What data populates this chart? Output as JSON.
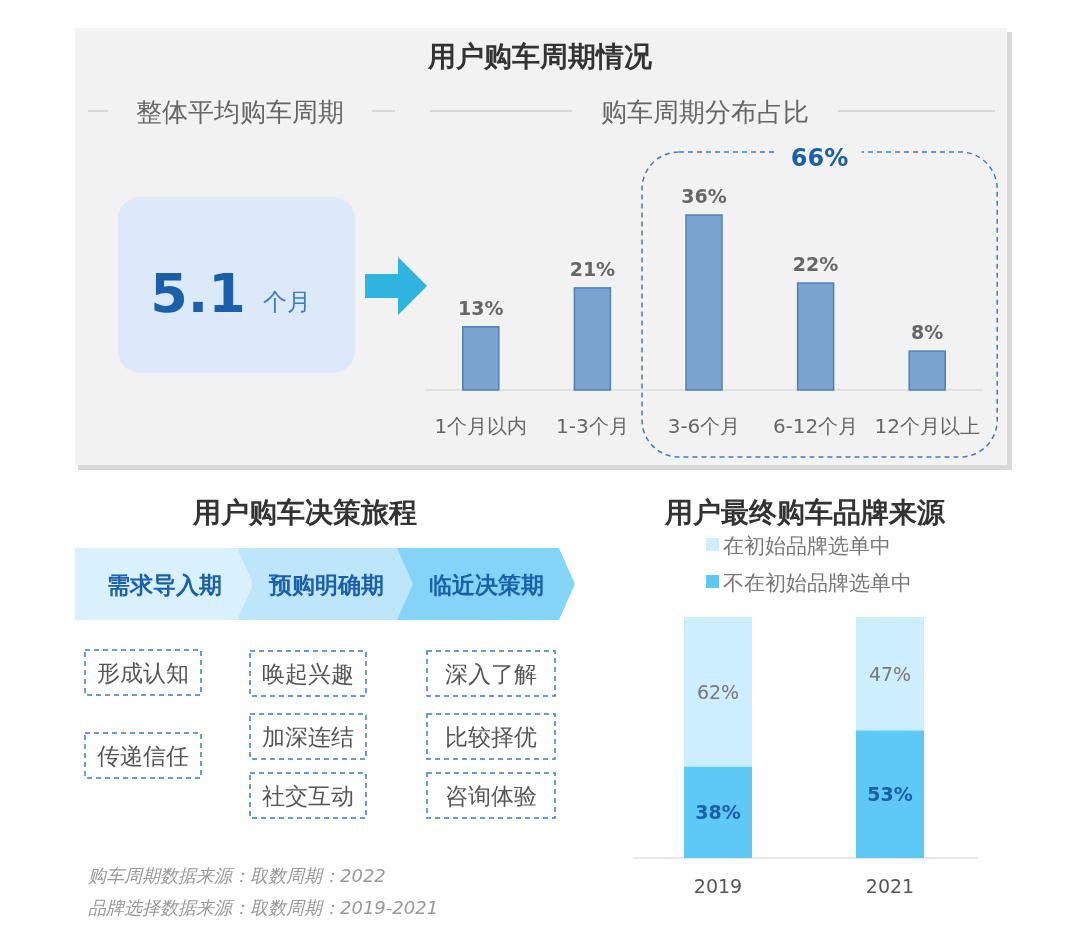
{
  "chart_data": [
    {
      "type": "other",
      "title": "用户购车周期情况",
      "subtitle": "整体平均购车周期",
      "annotations": [
        "5.1",
        "个月"
      ]
    },
    {
      "type": "bar",
      "subtitle": "购车周期分布占比",
      "categories": [
        "1个月以内",
        "1-3个月",
        "3-6个月",
        "6-12个月",
        "12个月以上"
      ],
      "values": [
        13,
        21,
        36,
        22,
        8
      ],
      "value_labels": [
        "13%",
        "21%",
        "36%",
        "22%",
        "8%"
      ],
      "color": "#7aa3d0",
      "annotations": [
        "66%",
        "购车周期数据来源：取数周期：2022"
      ]
    },
    {
      "type": "other",
      "title": "用户购车决策旅程",
      "categories": [
        "需求导入期",
        "预购明确期",
        "临近决策期"
      ],
      "colors": [
        "#d8f1fc",
        "#bde6fa",
        "#84d3f8"
      ],
      "annotations": [
        "形成认知",
        "传递信任",
        "唤起兴趣",
        "加深连结",
        "社交互动",
        "深入了解",
        "比较择优",
        "咨询体验"
      ]
    },
    {
      "type": "bar",
      "stacked": true,
      "title": "用户最终购车品牌来源",
      "categories": [
        "2019",
        "2021"
      ],
      "legend": "top",
      "series": [
        {
          "name": "不在初始品牌选单中",
          "color": "#5ec8f6",
          "values": [
            38,
            53
          ],
          "value_labels": [
            "38%",
            "53%"
          ]
        },
        {
          "name": "在初始品牌选单中",
          "color": "#cdeefc",
          "values": [
            62,
            47
          ],
          "value_labels": [
            "62%",
            "47%"
          ]
        }
      ],
      "annotations": [
        "品牌选择数据来源：取数周期：2019-2021"
      ]
    }
  ]
}
